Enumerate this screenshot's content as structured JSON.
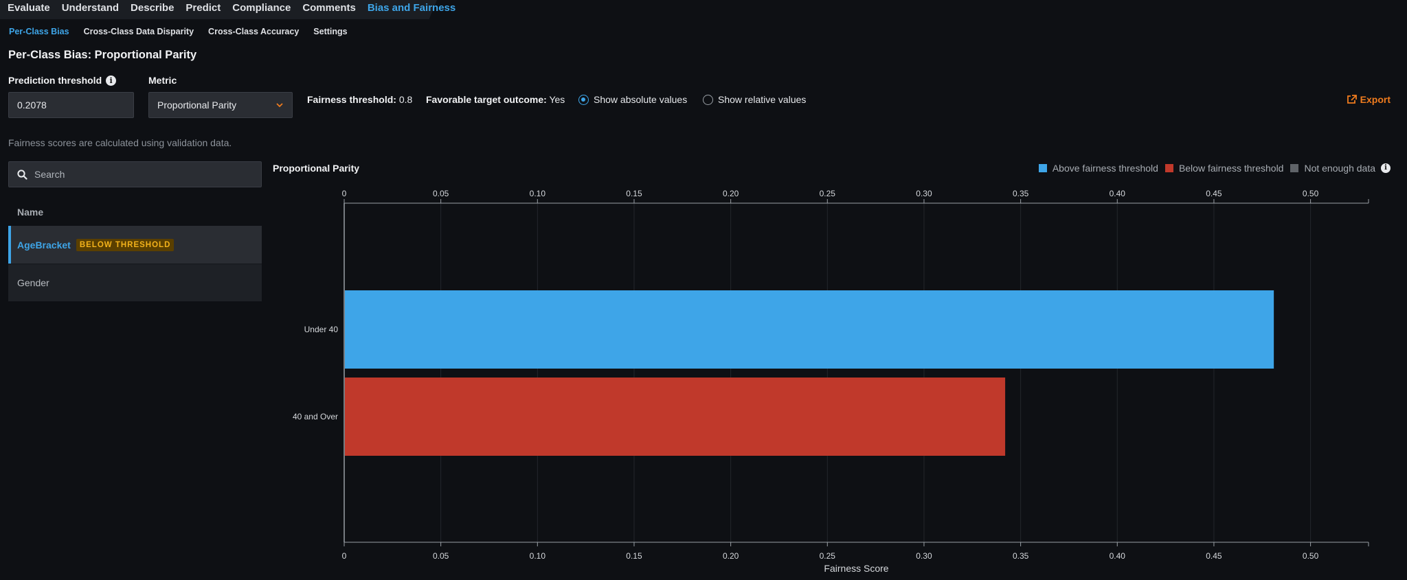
{
  "nav": {
    "tabs": [
      "Evaluate",
      "Understand",
      "Describe",
      "Predict",
      "Compliance",
      "Comments",
      "Bias and Fairness"
    ],
    "active_tab": "Bias and Fairness"
  },
  "subtabs": {
    "items": [
      "Per-Class Bias",
      "Cross-Class Data Disparity",
      "Cross-Class Accuracy",
      "Settings"
    ],
    "active": "Per-Class Bias"
  },
  "page_title": "Per-Class Bias: Proportional Parity",
  "controls": {
    "prediction_threshold_label": "Prediction threshold",
    "prediction_threshold_value": "0.2078",
    "metric_label": "Metric",
    "metric_value": "Proportional Parity",
    "fairness_threshold_label": "Fairness threshold:",
    "fairness_threshold_value": "0.8",
    "favorable_outcome_label": "Favorable target outcome:",
    "favorable_outcome_value": "Yes",
    "show_absolute_label": "Show absolute values",
    "show_relative_label": "Show relative values",
    "selected_view": "absolute",
    "export_label": "Export"
  },
  "note": "Fairness scores are calculated using validation data.",
  "sidebar": {
    "search_placeholder": "Search",
    "list_header": "Name",
    "items": [
      {
        "label": "AgeBracket",
        "badge": "BELOW THRESHOLD",
        "selected": true
      },
      {
        "label": "Gender",
        "badge": "",
        "selected": false
      }
    ]
  },
  "legend": {
    "above": "Above fairness threshold",
    "below": "Below fairness threshold",
    "not_enough": "Not enough data"
  },
  "colors": {
    "accent": "#3ea5e8",
    "above": "#3ea5e8",
    "below": "#c0392b",
    "not_enough": "#5f6368",
    "badge_text": "#f3b21b",
    "export": "#f07c1e"
  },
  "chart_data": {
    "type": "bar",
    "orientation": "horizontal",
    "title": "Proportional Parity",
    "xlabel": "Fairness Score",
    "ylabel": "",
    "xlim": [
      0,
      0.53
    ],
    "xticks": [
      "0",
      "0.05",
      "0.10",
      "0.15",
      "0.20",
      "0.25",
      "0.30",
      "0.35",
      "0.40",
      "0.45",
      "0.50"
    ],
    "grid": true,
    "legend_position": "top-right",
    "categories": [
      "Under 40",
      "40 and Over"
    ],
    "values": [
      0.481,
      0.342
    ],
    "status": [
      "above",
      "below"
    ]
  }
}
